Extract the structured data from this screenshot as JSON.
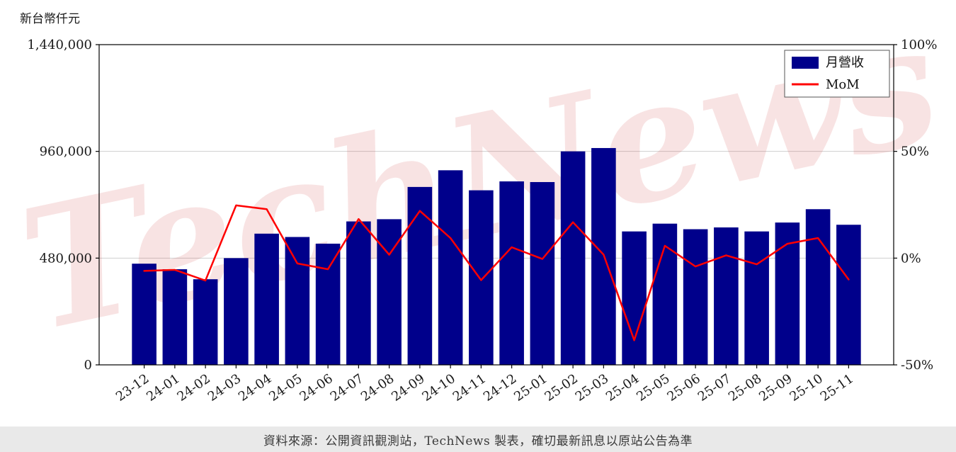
{
  "page": {
    "y_axis_title": "新台幣仟元",
    "watermark": "TechNews",
    "footer": "資料來源：公開資訊觀測站，TechNews 製表，確切最新訊息以原站公告為準"
  },
  "chart_data": {
    "type": "bar+line",
    "title": "",
    "categories": [
      "23-12",
      "24-01",
      "24-02",
      "24-03",
      "24-04",
      "24-05",
      "24-06",
      "24-07",
      "24-08",
      "24-09",
      "24-10",
      "24-11",
      "24-12",
      "25-01",
      "25-02",
      "25-03",
      "25-04",
      "25-05",
      "25-06",
      "25-07",
      "25-08",
      "25-09",
      "25-10",
      "25-11"
    ],
    "series": [
      {
        "name": "月營收",
        "type": "bar",
        "axis": "left",
        "color": "#00008B",
        "unit": "新台幣仟元",
        "values": [
          455000,
          430000,
          385000,
          480000,
          590000,
          575000,
          545000,
          645000,
          655000,
          800000,
          875000,
          785000,
          825000,
          822000,
          960000,
          975000,
          600000,
          635000,
          610000,
          618000,
          600000,
          640000,
          700000,
          630000
        ]
      },
      {
        "name": "MoM",
        "type": "line",
        "axis": "right",
        "color": "#FF0000",
        "unit": "%",
        "values": [
          -6.0,
          -5.5,
          -10.5,
          24.7,
          22.9,
          -2.5,
          -5.2,
          18.3,
          1.6,
          22.1,
          9.4,
          -10.3,
          5.1,
          -0.4,
          16.8,
          1.6,
          -38.5,
          5.8,
          -3.9,
          1.3,
          -2.9,
          6.7,
          9.4,
          -10.0
        ]
      }
    ],
    "left_axis": {
      "title": "新台幣仟元",
      "range": [
        0,
        1440000
      ],
      "ticks": [
        0,
        480000,
        960000,
        1440000
      ],
      "tick_labels": [
        "0",
        "480,000",
        "960,000",
        "1,440,000"
      ]
    },
    "right_axis": {
      "range": [
        -50,
        100
      ],
      "ticks": [
        -50,
        0,
        50,
        100
      ],
      "tick_labels": [
        "-50%",
        "0%",
        "50%",
        "100%"
      ]
    },
    "legend": {
      "position": "top-right",
      "entries": [
        "月營收",
        "MoM"
      ]
    },
    "grid": true,
    "watermark": "TechNews"
  }
}
